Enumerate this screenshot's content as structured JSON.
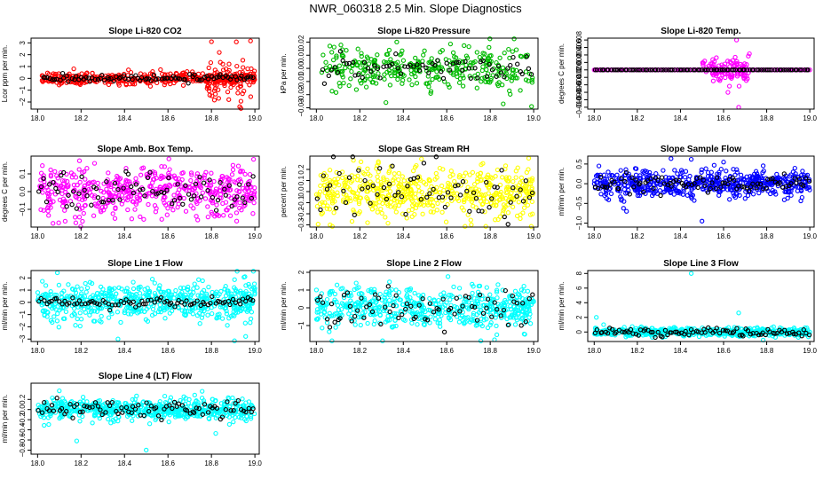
{
  "figure": {
    "title": "NWR_060318  2.5 Min. Slope Diagnostics",
    "overlay_color": "#000000"
  },
  "chart_data": [
    {
      "type": "scatter",
      "id": "co2",
      "title": "Slope Li-820 CO2",
      "xlabel": "",
      "ylabel": "Lcor ppm per min.",
      "color": "#ff0000",
      "xlim": [
        17.97,
        19.02
      ],
      "ylim": [
        -2.6,
        3.4
      ],
      "xticks": [
        18.0,
        18.2,
        18.4,
        18.6,
        18.8,
        19.0
      ],
      "yticks": [
        -2,
        -1,
        0,
        1,
        2,
        3
      ],
      "x_range": [
        18.02,
        19.0
      ],
      "n_points": 420,
      "spread": 0.25,
      "burst": {
        "x_start": 18.78,
        "spread": 1.1,
        "n": 60
      },
      "overlay_n": 90,
      "overlay_spread": 0.15,
      "outliers": [
        {
          "x": 18.8,
          "y": 3.1
        },
        {
          "x": 18.93,
          "y": -2.4
        },
        {
          "x": 18.88,
          "y": -1.8
        }
      ]
    },
    {
      "type": "scatter",
      "id": "pressure",
      "title": "Slope Li-820 Pressure",
      "xlabel": "",
      "ylabel": "kPa per min.",
      "color": "#00bb00",
      "xlim": [
        17.97,
        19.02
      ],
      "ylim": [
        -0.031,
        0.023
      ],
      "xticks": [
        18.0,
        18.2,
        18.4,
        18.6,
        18.8,
        19.0
      ],
      "yticks": [
        -0.03,
        -0.02,
        -0.01,
        0.0,
        0.01,
        0.02
      ],
      "x_range": [
        18.02,
        19.0
      ],
      "n_points": 330,
      "spread": 0.008,
      "overlay_n": 70,
      "overlay_spread": 0.005,
      "outliers": [
        {
          "x": 18.37,
          "y": 0.02
        },
        {
          "x": 18.32,
          "y": -0.026
        },
        {
          "x": 18.99,
          "y": -0.029
        },
        {
          "x": 18.86,
          "y": -0.027
        }
      ]
    },
    {
      "type": "scatter",
      "id": "temp",
      "title": "Slope Li-820 Temp.",
      "xlabel": "",
      "ylabel": "degrees C per min.",
      "color": "#ff00ff",
      "xlim": [
        17.97,
        19.02
      ],
      "ylim": [
        -0.0105,
        0.0085
      ],
      "xticks": [
        18.0,
        18.2,
        18.4,
        18.6,
        18.8,
        19.0
      ],
      "yticks": [
        -0.01,
        -0.008,
        -0.006,
        -0.004,
        -0.002,
        0.0,
        0.002,
        0.004,
        0.006,
        0.008
      ],
      "x_range": [
        18.0,
        19.0
      ],
      "mode": "flat_line",
      "line_y": 0.0,
      "n_points": 120,
      "burst": {
        "x_start": 18.5,
        "x_end": 18.72,
        "spread": 0.0015,
        "n": 110
      },
      "overlay_n": 95,
      "overlay_spread": 0.0001,
      "outliers": [
        {
          "x": 18.66,
          "y": 0.008
        },
        {
          "x": 18.67,
          "y": -0.01
        },
        {
          "x": 18.62,
          "y": -0.006
        }
      ]
    },
    {
      "type": "scatter",
      "id": "ambtemp",
      "title": "Slope Amb. Box Temp.",
      "xlabel": "",
      "ylabel": "degrees C per min.",
      "color": "#ff00ff",
      "xlim": [
        17.97,
        19.02
      ],
      "ylim": [
        -0.2,
        0.2
      ],
      "xticks": [
        18.0,
        18.2,
        18.4,
        18.6,
        18.8,
        19.0
      ],
      "yticks": [
        -0.1,
        0.0,
        0.1
      ],
      "x_range": [
        18.0,
        19.0
      ],
      "n_points": 520,
      "spread": 0.07,
      "overlay_n": 80,
      "overlay_spread": 0.05,
      "outliers": []
    },
    {
      "type": "scatter",
      "id": "rh",
      "title": "Slope Gas Stream RH",
      "xlabel": "",
      "ylabel": "percent per min.",
      "color": "#ffff00",
      "xlim": [
        17.97,
        19.02
      ],
      "ylim": [
        -0.32,
        0.32
      ],
      "xticks": [
        18.0,
        18.2,
        18.4,
        18.6,
        18.8,
        19.0
      ],
      "yticks": [
        -0.3,
        -0.2,
        -0.1,
        0.0,
        0.1,
        0.2
      ],
      "x_range": [
        18.0,
        19.0
      ],
      "n_points": 540,
      "spread": 0.12,
      "overlay_n": 70,
      "overlay_spread": 0.12,
      "outliers": []
    },
    {
      "type": "scatter",
      "id": "sampleflow",
      "title": "Slope Sample Flow",
      "xlabel": "",
      "ylabel": "ml/min per min.",
      "color": "#0000ff",
      "xlim": [
        17.97,
        19.02
      ],
      "ylim": [
        -1.1,
        0.7
      ],
      "xticks": [
        18.0,
        18.2,
        18.4,
        18.6,
        18.8,
        19.0
      ],
      "yticks": [
        -1.0,
        -0.5,
        0.0,
        0.5
      ],
      "x_range": [
        18.0,
        19.0
      ],
      "n_points": 560,
      "spread": 0.17,
      "overlay_n": 90,
      "overlay_spread": 0.1,
      "outliers": [
        {
          "x": 18.45,
          "y": 0.62
        },
        {
          "x": 18.6,
          "y": 0.55
        },
        {
          "x": 18.5,
          "y": -0.95
        },
        {
          "x": 18.15,
          "y": -0.7
        }
      ]
    },
    {
      "type": "scatter",
      "id": "line1",
      "title": "Slope Line 1 Flow",
      "xlabel": "",
      "ylabel": "ml/min per min.",
      "color": "#00ffff",
      "xlim": [
        17.97,
        19.02
      ],
      "ylim": [
        -3.2,
        2.6
      ],
      "xticks": [
        18.0,
        18.2,
        18.4,
        18.6,
        18.8,
        19.0
      ],
      "yticks": [
        -3,
        -2,
        -1,
        0,
        1,
        2
      ],
      "x_range": [
        18.0,
        19.0
      ],
      "n_points": 560,
      "spread": 0.75,
      "burst": {
        "x_start": 18.9,
        "spread": 1.5,
        "n": 30
      },
      "overlay_n": 85,
      "overlay_spread": 0.2,
      "outliers": [
        {
          "x": 18.37,
          "y": -3.0
        }
      ]
    },
    {
      "type": "scatter",
      "id": "line2",
      "title": "Slope Line 2 Flow",
      "xlabel": "",
      "ylabel": "ml/min per min.",
      "color": "#00ffff",
      "xlim": [
        17.97,
        19.02
      ],
      "ylim": [
        -1.9,
        2.1
      ],
      "xticks": [
        18.0,
        18.2,
        18.4,
        18.6,
        18.8,
        19.0
      ],
      "yticks": [
        -1,
        0,
        1,
        2
      ],
      "x_range": [
        18.0,
        19.0
      ],
      "n_points": 560,
      "spread": 0.55,
      "overlay_n": 75,
      "overlay_spread": 0.6,
      "outliers": [
        {
          "x": 18.82,
          "y": -1.8
        }
      ]
    },
    {
      "type": "scatter",
      "id": "line3",
      "title": "Slope Line 3 Flow",
      "xlabel": "",
      "ylabel": "ml/min per min.",
      "color": "#00ffff",
      "xlim": [
        17.97,
        19.02
      ],
      "ylim": [
        -1.3,
        8.4
      ],
      "xticks": [
        18.0,
        18.2,
        18.4,
        18.6,
        18.8,
        19.0
      ],
      "yticks": [
        0,
        2,
        4,
        6,
        8
      ],
      "x_range": [
        18.0,
        19.0
      ],
      "n_points": 520,
      "spread": 0.3,
      "overlay_n": 90,
      "overlay_spread": 0.3,
      "outliers": [
        {
          "x": 18.45,
          "y": 8.0
        },
        {
          "x": 18.67,
          "y": 2.6
        },
        {
          "x": 18.01,
          "y": 2.0
        }
      ]
    },
    {
      "type": "scatter",
      "id": "line4",
      "title": "Slope Line 4 (LT) Flow",
      "xlabel": "",
      "ylabel": "ml/min per min.",
      "color": "#00ffff",
      "xlim": [
        17.97,
        19.02
      ],
      "ylim": [
        -0.88,
        0.52
      ],
      "xticks": [
        18.0,
        18.2,
        18.4,
        18.6,
        18.8,
        19.0
      ],
      "yticks": [
        -0.8,
        -0.6,
        -0.4,
        -0.2,
        0.0,
        0.2
      ],
      "x_range": [
        18.0,
        19.0
      ],
      "n_points": 560,
      "spread": 0.1,
      "overlay_n": 85,
      "overlay_spread": 0.08,
      "outliers": [
        {
          "x": 18.18,
          "y": -0.62
        },
        {
          "x": 18.5,
          "y": -0.8
        },
        {
          "x": 18.82,
          "y": -0.47
        },
        {
          "x": 18.1,
          "y": 0.37
        }
      ]
    }
  ]
}
